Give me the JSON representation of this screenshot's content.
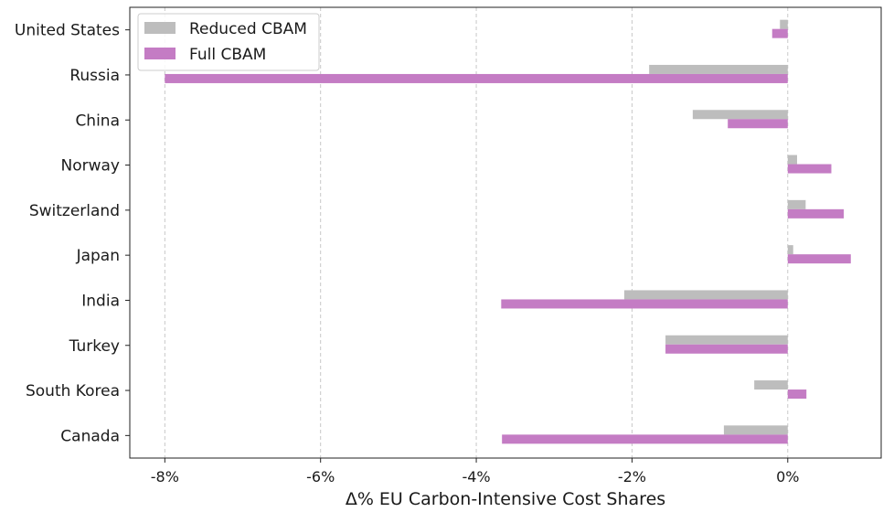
{
  "chart_data": {
    "type": "bar",
    "orientation": "horizontal",
    "categories": [
      "United States",
      "Russia",
      "China",
      "Norway",
      "Switzerland",
      "Japan",
      "India",
      "Turkey",
      "South Korea",
      "Canada"
    ],
    "series": [
      {
        "name": "Reduced CBAM",
        "color": "#bdbdbd",
        "values": [
          -0.1,
          -1.78,
          -1.22,
          0.12,
          0.23,
          0.07,
          -2.1,
          -1.57,
          -0.43,
          -0.82
        ]
      },
      {
        "name": "Full CBAM",
        "color": "#c47cc4",
        "values": [
          -0.2,
          -8.0,
          -0.77,
          0.56,
          0.72,
          0.81,
          -3.68,
          -1.57,
          0.24,
          -3.67
        ]
      }
    ],
    "xlabel": "Δ% EU Carbon-Intensive Cost Shares",
    "ylabel": "",
    "xlim": [
      -8.45,
      1.2
    ],
    "xticks": [
      -8,
      -6,
      -4,
      -2,
      0
    ],
    "xtick_labels": [
      "-8%",
      "-6%",
      "-4%",
      "-2%",
      "0%"
    ],
    "grid": "x-dashed",
    "legend": "top-left"
  }
}
